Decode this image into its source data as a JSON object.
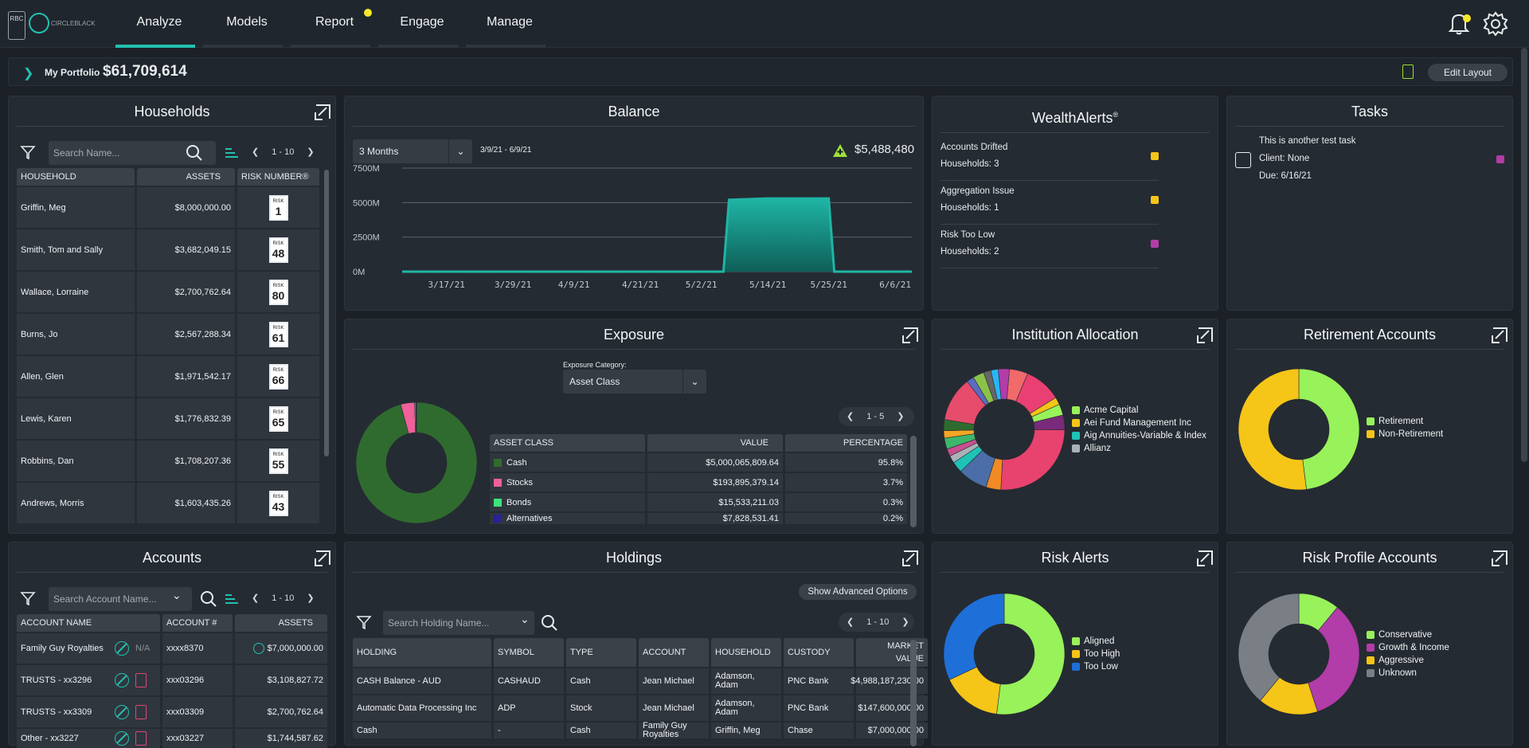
{
  "header": {
    "logo_rbc": "RBC",
    "logo_cb": "CIRCLEBLACK",
    "tabs": [
      {
        "label": "Analyze"
      },
      {
        "label": "Models"
      },
      {
        "label": "Report"
      },
      {
        "label": "Engage"
      },
      {
        "label": "Manage"
      }
    ],
    "accent": "#21c2b0",
    "notify": "#f7e82a"
  },
  "portfolio": {
    "label": "My Portfolio",
    "value": "$61,709,614",
    "edit": "Edit Layout"
  },
  "households": {
    "title": "Households",
    "search_placeholder": "Search Name...",
    "pager": "1 - 10",
    "columns": [
      "HOUSEHOLD",
      "ASSETS",
      "RISK NUMBER®"
    ],
    "rows": [
      {
        "name": "Griffin, Meg",
        "assets": "$8,000,000.00",
        "risk": "1"
      },
      {
        "name": "Smith, Tom and Sally",
        "assets": "$3,682,049.15",
        "risk": "48"
      },
      {
        "name": "Wallace, Lorraine",
        "assets": "$2,700,762.64",
        "risk": "80"
      },
      {
        "name": "Burns, Jo",
        "assets": "$2,567,288.34",
        "risk": "61"
      },
      {
        "name": "Allen, Glen",
        "assets": "$1,971,542.17",
        "risk": "66"
      },
      {
        "name": "Lewis, Karen",
        "assets": "$1,776,832.39",
        "risk": "65"
      },
      {
        "name": "Robbins, Dan",
        "assets": "$1,708,207.36",
        "risk": "55"
      },
      {
        "name": "Andrews, Morris",
        "assets": "$1,603,435.26",
        "risk": "43"
      }
    ],
    "risk_label": "RISK"
  },
  "balance": {
    "title": "Balance",
    "period": "3 Months",
    "range": "3/9/21 - 6/9/21",
    "change": "$5,488,480"
  },
  "chart_data": {
    "type": "area",
    "x": [
      "3/9/21",
      "3/17/21",
      "3/29/21",
      "4/9/21",
      "4/21/21",
      "5/2/21",
      "5/6/21",
      "5/7/21",
      "5/14/21",
      "5/25/21",
      "5/26/21",
      "6/6/21",
      "6/9/21"
    ],
    "values": [
      0,
      0,
      0,
      0,
      0,
      0,
      0,
      5200,
      5300,
      5300,
      0,
      0,
      0
    ],
    "yticks": [
      "7500M",
      "5000M",
      "2500M",
      "0M"
    ],
    "xticks": [
      "3/17/21",
      "3/29/21",
      "4/9/21",
      "4/21/21",
      "5/2/21",
      "5/14/21",
      "5/25/21",
      "6/6/21"
    ],
    "ylim": [
      0,
      7500
    ],
    "color": "#1fb5a5"
  },
  "exposure": {
    "title": "Exposure",
    "category_label": "Exposure Category:",
    "category": "Asset Class",
    "pager": "1 - 5",
    "columns": [
      "ASSET CLASS",
      "VALUE",
      "PERCENTAGE"
    ],
    "rows": [
      {
        "name": "Cash",
        "value": "$5,000,065,809.64",
        "pct": "95.8%",
        "color": "#2f6b2f"
      },
      {
        "name": "Stocks",
        "value": "$193,895,379.14",
        "pct": "3.7%",
        "color": "#f0609a"
      },
      {
        "name": "Bonds",
        "value": "$15,533,211.03",
        "pct": "0.3%",
        "color": "#3de37a"
      },
      {
        "name": "Alternatives",
        "value": "$7,828,531.41",
        "pct": "0.2%",
        "color": "#2a2393"
      }
    ]
  },
  "wealth_alerts": {
    "title": "WealthAlerts",
    "sup": "®",
    "rows": [
      {
        "name": "Accounts Drifted",
        "count": "Households: 3",
        "color": "#f5c518"
      },
      {
        "name": "Aggregation Issue",
        "count": "Households: 1",
        "color": "#f5c518"
      },
      {
        "name": "Risk Too Low",
        "count": "Households: 2",
        "color": "#b23ca8"
      }
    ]
  },
  "tasks": {
    "title": "Tasks",
    "item": {
      "name": "This is another test task",
      "client": "Client: None",
      "due": "Due: 6/16/21",
      "color": "#b23ca8"
    }
  },
  "institution": {
    "title": "Institution Allocation",
    "legend": [
      {
        "label": "Acme Capital",
        "color": "#98f25a"
      },
      {
        "label": "Aei Fund Management Inc",
        "color": "#f5c518"
      },
      {
        "label": "Aig Annuities-Variable & Index",
        "color": "#1fc3b6"
      },
      {
        "label": "Allianz",
        "color": "#aab1b8"
      }
    ]
  },
  "retirement": {
    "title": "Retirement Accounts",
    "legend": [
      {
        "label": "Retirement",
        "color": "#98f25a"
      },
      {
        "label": "Non-Retirement",
        "color": "#f5c518"
      }
    ],
    "values": [
      48,
      52
    ]
  },
  "accounts": {
    "title": "Accounts",
    "search_placeholder": "Search Account Name...",
    "pager": "1 - 10",
    "columns": [
      "ACCOUNT NAME",
      "ACCOUNT #",
      "ASSETS"
    ],
    "rows": [
      {
        "name": "Family Guy Royalties",
        "na": "N/A",
        "num": "xxxx8370",
        "assets": "$7,000,000.00"
      },
      {
        "name": "TRUSTS - xx3296",
        "na": "",
        "num": "xxx03296",
        "assets": "$3,108,827.72"
      },
      {
        "name": "TRUSTS - xx3309",
        "na": "",
        "num": "xxx03309",
        "assets": "$2,700,762.64"
      },
      {
        "name": "Other - xx3227",
        "na": "",
        "num": "xxx03227",
        "assets": "$1,744,587.62"
      }
    ]
  },
  "holdings": {
    "title": "Holdings",
    "advanced": "Show Advanced Options",
    "search_placeholder": "Search Holding Name...",
    "pager": "1 - 10",
    "columns": [
      "HOLDING",
      "SYMBOL",
      "TYPE",
      "ACCOUNT",
      "HOUSEHOLD",
      "CUSTODY",
      "MARKET VALUE"
    ],
    "rows": [
      [
        "CASH Balance - AUD",
        "CASHAUD",
        "Cash",
        "Jean Michael",
        "Adamson, Adam",
        "PNC Bank",
        "$4,988,187,230.00"
      ],
      [
        "Automatic Data Processing Inc",
        "ADP",
        "Stock",
        "Jean Michael",
        "Adamson, Adam",
        "PNC Bank",
        "$147,600,000.00"
      ],
      [
        "Cash",
        "-",
        "Cash",
        "Family Guy Royalties",
        "Griffin, Meg",
        "Chase",
        "$7,000,000.00"
      ]
    ]
  },
  "risk_alerts": {
    "title": "Risk Alerts",
    "legend": [
      {
        "label": "Aligned",
        "color": "#98f25a"
      },
      {
        "label": "Too High",
        "color": "#f5c518"
      },
      {
        "label": "Too Low",
        "color": "#1f6fd9"
      }
    ],
    "values": [
      52,
      16,
      32
    ]
  },
  "risk_profile": {
    "title": "Risk Profile Accounts",
    "legend": [
      {
        "label": "Conservative",
        "color": "#98f25a"
      },
      {
        "label": "Growth & Income",
        "color": "#b23ca8"
      },
      {
        "label": "Aggressive",
        "color": "#f5c518"
      },
      {
        "label": "Unknown",
        "color": "#7a7f86"
      }
    ],
    "values": [
      11,
      34,
      16,
      39
    ]
  }
}
